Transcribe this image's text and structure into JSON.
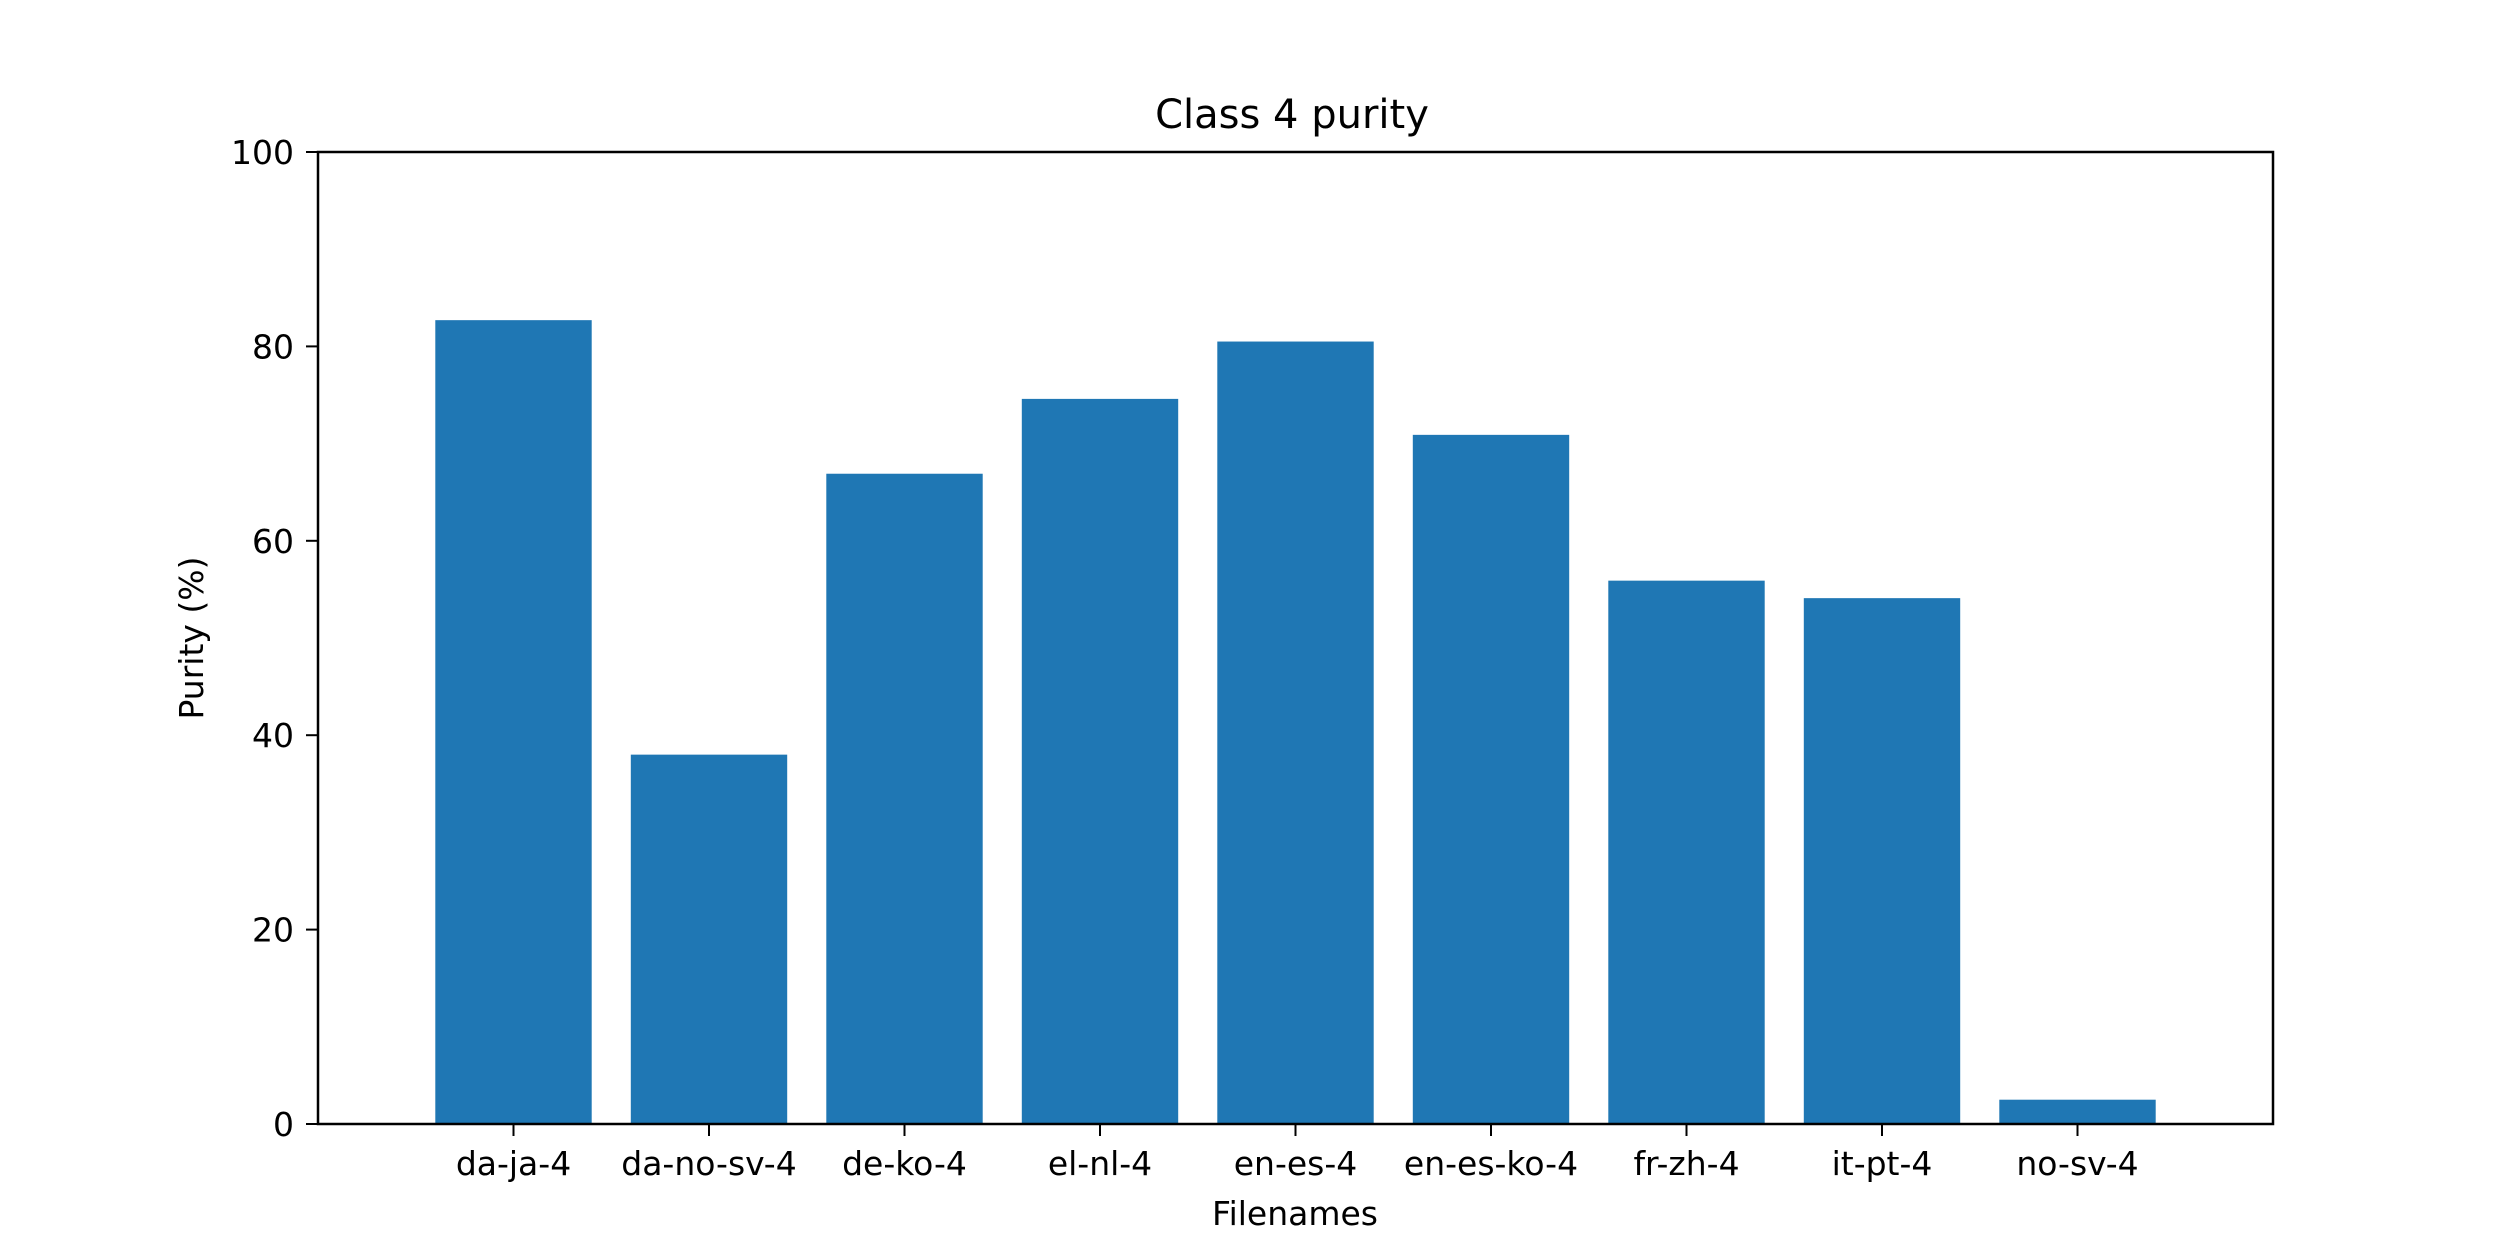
{
  "chart_data": {
    "type": "bar",
    "title": "Class 4 purity",
    "xlabel": "Filenames",
    "ylabel": "Purity (%)",
    "categories": [
      "da-ja-4",
      "da-no-sv-4",
      "de-ko-4",
      "el-nl-4",
      "en-es-4",
      "en-es-ko-4",
      "fr-zh-4",
      "it-pt-4",
      "no-sv-4"
    ],
    "values": [
      82.7,
      38.0,
      66.9,
      74.6,
      80.5,
      70.9,
      55.9,
      54.1,
      2.5
    ],
    "ylim": [
      0,
      100
    ],
    "yticks": [
      0,
      20,
      40,
      60,
      80,
      100
    ],
    "grid": false,
    "bar_color": "#1f77b4"
  }
}
